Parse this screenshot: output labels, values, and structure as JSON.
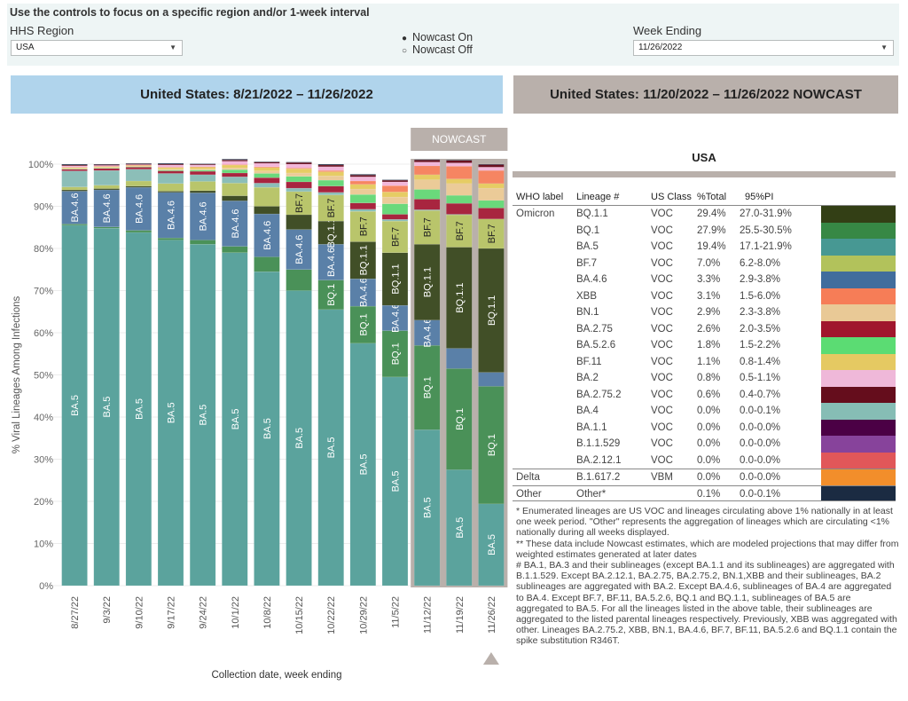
{
  "controls": {
    "title": "Use the controls to focus on a specific region and/or 1-week interval",
    "region_label": "HHS Region",
    "region_value": "USA",
    "nowcast_options": [
      {
        "label": "Nowcast On",
        "selected": true
      },
      {
        "label": "Nowcast Off",
        "selected": false
      }
    ],
    "week_label": "Week Ending",
    "week_value": "11/26/2022",
    "dropdown_icon": "triangle-down"
  },
  "headers": {
    "left": "United States: 8/21/2022 – 11/26/2022",
    "right": "United States: 11/20/2022 – 11/26/2022 NOWCAST"
  },
  "chart_data": {
    "type": "bar",
    "stacked": true,
    "title": "",
    "xlabel": "Collection date, week ending",
    "ylabel": "% Viral Lineages Among Infections",
    "ylim": [
      0,
      100
    ],
    "yticks": [
      "0%",
      "10%",
      "20%",
      "30%",
      "40%",
      "50%",
      "60%",
      "70%",
      "80%",
      "90%",
      "100%"
    ],
    "grid": true,
    "nowcast_label": "NOWCAST",
    "nowcast_categories": [
      "11/12/22",
      "11/19/22",
      "11/26/22"
    ],
    "selected_week": "11/26/22",
    "categories": [
      "8/27/22",
      "9/3/22",
      "9/10/22",
      "9/17/22",
      "9/24/22",
      "10/1/22",
      "10/8/22",
      "10/15/22",
      "10/22/22",
      "10/29/22",
      "11/5/22",
      "11/12/22",
      "11/19/22",
      "11/26/22"
    ],
    "series": [
      {
        "name": "BA.5",
        "color": "#5ba39d",
        "values": [
          85.5,
          84.8,
          83.8,
          82.0,
          81.0,
          79.0,
          74.5,
          70.0,
          65.5,
          57.5,
          49.5,
          37.0,
          27.5,
          19.4
        ]
      },
      {
        "name": "BQ.1",
        "color": "#4a9158",
        "values": [
          0.3,
          0.3,
          0.5,
          0.5,
          1.0,
          1.5,
          3.5,
          5.0,
          7.0,
          8.8,
          11.0,
          20.0,
          24.0,
          27.9
        ]
      },
      {
        "name": "BA.4.6",
        "color": "#5a80a8",
        "values": [
          7.8,
          8.8,
          10.2,
          10.8,
          11.2,
          10.8,
          10.2,
          9.5,
          8.5,
          6.5,
          6.0,
          6.0,
          4.8,
          3.3
        ]
      },
      {
        "name": "BQ.1.1",
        "color": "#414f27",
        "values": [
          0.3,
          0.3,
          0.3,
          0.3,
          0.5,
          1.2,
          1.8,
          3.5,
          5.5,
          8.8,
          12.5,
          18.0,
          24.0,
          29.4
        ]
      },
      {
        "name": "BF.7",
        "color": "#b9c56b",
        "values": [
          0.7,
          0.8,
          1.2,
          1.8,
          2.2,
          3.0,
          4.5,
          5.5,
          6.2,
          7.2,
          7.5,
          8.0,
          7.7,
          7.0
        ]
      },
      {
        "name": "BA.4",
        "color": "#8cbeb8",
        "values": [
          3.8,
          3.5,
          2.8,
          2.4,
          1.6,
          1.5,
          1.0,
          0.8,
          0.6,
          0.5,
          0.4,
          0.2,
          0.1,
          0.0
        ]
      },
      {
        "name": "BA.2.75",
        "color": "#a8253f",
        "values": [
          0.4,
          0.5,
          0.5,
          0.6,
          0.8,
          0.9,
          1.3,
          1.5,
          1.5,
          1.5,
          1.2,
          2.5,
          2.6,
          2.6
        ]
      },
      {
        "name": "BA.5.2.6",
        "color": "#6ad97b",
        "values": [
          0.1,
          0.1,
          0.1,
          0.2,
          0.3,
          0.8,
          1.0,
          1.3,
          1.4,
          2.0,
          2.5,
          2.3,
          1.9,
          1.8
        ]
      },
      {
        "name": "BN.1",
        "color": "#ebcb98",
        "values": [
          0.1,
          0.1,
          0.1,
          0.2,
          0.2,
          0.4,
          0.6,
          0.8,
          1.0,
          1.3,
          1.6,
          2.3,
          2.8,
          2.9
        ]
      },
      {
        "name": "BF.11",
        "color": "#e6cc64",
        "values": [
          0.2,
          0.2,
          0.2,
          0.4,
          0.5,
          0.7,
          0.8,
          1.0,
          1.0,
          1.1,
          1.2,
          1.2,
          1.1,
          1.1
        ]
      },
      {
        "name": "XBB",
        "color": "#f68562",
        "values": [
          0.1,
          0.1,
          0.1,
          0.1,
          0.1,
          0.1,
          0.2,
          0.2,
          0.3,
          0.8,
          1.5,
          2.1,
          3.0,
          3.1
        ]
      },
      {
        "name": "BA.2",
        "color": "#f2b6d9",
        "values": [
          0.3,
          0.2,
          0.1,
          0.5,
          0.4,
          0.8,
          0.8,
          0.9,
          0.9,
          1.0,
          0.9,
          0.9,
          0.8,
          0.8
        ]
      },
      {
        "name": "BA.2.75.2",
        "color": "#6b1120",
        "values": [
          0.2,
          0.2,
          0.2,
          0.2,
          0.2,
          0.3,
          0.3,
          0.4,
          0.4,
          0.4,
          0.4,
          0.5,
          0.6,
          0.6
        ]
      },
      {
        "name": "Other",
        "color": "#1e2d45",
        "values": [
          0.2,
          0.1,
          0.1,
          0.2,
          0.1,
          0.2,
          0.1,
          0.1,
          0.2,
          0.2,
          0.1,
          0.1,
          0.1,
          0.1
        ]
      }
    ]
  },
  "table": {
    "title": "USA",
    "columns": [
      "WHO label",
      "Lineage #",
      "US Class",
      "%Total",
      "95%PI"
    ],
    "rows": [
      {
        "who": "Omicron",
        "lineage": "BQ.1.1",
        "class": "VOC",
        "total": "29.4%",
        "pi": "27.0-31.9%",
        "color": "#333f15"
      },
      {
        "who": "",
        "lineage": "BQ.1",
        "class": "VOC",
        "total": "27.9%",
        "pi": "25.5-30.5%",
        "color": "#378845"
      },
      {
        "who": "",
        "lineage": "BA.5",
        "class": "VOC",
        "total": "19.4%",
        "pi": "17.1-21.9%",
        "color": "#479893"
      },
      {
        "who": "",
        "lineage": "BF.7",
        "class": "VOC",
        "total": "7.0%",
        "pi": "6.2-8.0%",
        "color": "#b2c25b"
      },
      {
        "who": "",
        "lineage": "BA.4.6",
        "class": "VOC",
        "total": "3.3%",
        "pi": "2.9-3.8%",
        "color": "#416d9d"
      },
      {
        "who": "",
        "lineage": "XBB",
        "class": "VOC",
        "total": "3.1%",
        "pi": "1.5-6.0%",
        "color": "#f67d57"
      },
      {
        "who": "",
        "lineage": "BN.1",
        "class": "VOC",
        "total": "2.9%",
        "pi": "2.3-3.8%",
        "color": "#e9c996"
      },
      {
        "who": "",
        "lineage": "BA.2.75",
        "class": "VOC",
        "total": "2.6%",
        "pi": "2.0-3.5%",
        "color": "#a0162d"
      },
      {
        "who": "",
        "lineage": "BA.5.2.6",
        "class": "VOC",
        "total": "1.8%",
        "pi": "1.5-2.2%",
        "color": "#5bdc73"
      },
      {
        "who": "",
        "lineage": "BF.11",
        "class": "VOC",
        "total": "1.1%",
        "pi": "0.8-1.4%",
        "color": "#e5c962"
      },
      {
        "who": "",
        "lineage": "BA.2",
        "class": "VOC",
        "total": "0.8%",
        "pi": "0.5-1.1%",
        "color": "#efb8d9"
      },
      {
        "who": "",
        "lineage": "BA.2.75.2",
        "class": "VOC",
        "total": "0.6%",
        "pi": "0.4-0.7%",
        "color": "#650d1c"
      },
      {
        "who": "",
        "lineage": "BA.4",
        "class": "VOC",
        "total": "0.0%",
        "pi": "0.0-0.1%",
        "color": "#86bdb5"
      },
      {
        "who": "",
        "lineage": "BA.1.1",
        "class": "VOC",
        "total": "0.0%",
        "pi": "0.0-0.0%",
        "color": "#4b0045"
      },
      {
        "who": "",
        "lineage": "B.1.1.529",
        "class": "VOC",
        "total": "0.0%",
        "pi": "0.0-0.0%",
        "color": "#87439b"
      },
      {
        "who": "",
        "lineage": "BA.2.12.1",
        "class": "VOC",
        "total": "0.0%",
        "pi": "0.0-0.0%",
        "color": "#e15759"
      },
      {
        "who": "Delta",
        "lineage": "B.1.617.2",
        "class": "VBM",
        "total": "0.0%",
        "pi": "0.0-0.0%",
        "color": "#f28e2b"
      },
      {
        "who": "Other",
        "lineage": "Other*",
        "class": "",
        "total": "0.1%",
        "pi": "0.0-0.1%",
        "color": "#1b2b42"
      }
    ]
  },
  "footnotes": [
    "*      Enumerated lineages are US VOC and lineages circulating above 1% nationally in at least one week period. \"Other\" represents the aggregation of lineages which are circulating <1% nationally during all weeks displayed.",
    "**     These data include Nowcast estimates, which are modeled projections that may differ from weighted estimates generated at later dates",
    "#      BA.1, BA.3 and their sublineages (except BA.1.1 and its sublineages) are aggregated with B.1.1.529. Except BA.2.12.1, BA.2.75, BA.2.75.2, BN.1,XBB and their sublineages, BA.2 sublineages are aggregated with BA.2. Except BA.4.6, sublineages of BA.4 are aggregated to BA.4. Except BF.7, BF.11, BA.5.2.6, BQ.1 and BQ.1.1, sublineages of BA.5 are aggregated to BA.5. For all the lineages listed in the above table, their sublineages are aggregated to the listed parental lineages respectively. Previously, XBB was aggregated with other. Lineages BA.2.75.2, XBB, BN.1, BA.4.6, BF.7, BF.11, BA.5.2.6 and BQ.1.1 contain the spike substitution R346T."
  ],
  "bar_labels": {
    "label_series": [
      "BA.5",
      "BQ.1",
      "BA.4.6",
      "BQ.1.1",
      "BF.7"
    ],
    "min_value_for_label": 5.5
  }
}
